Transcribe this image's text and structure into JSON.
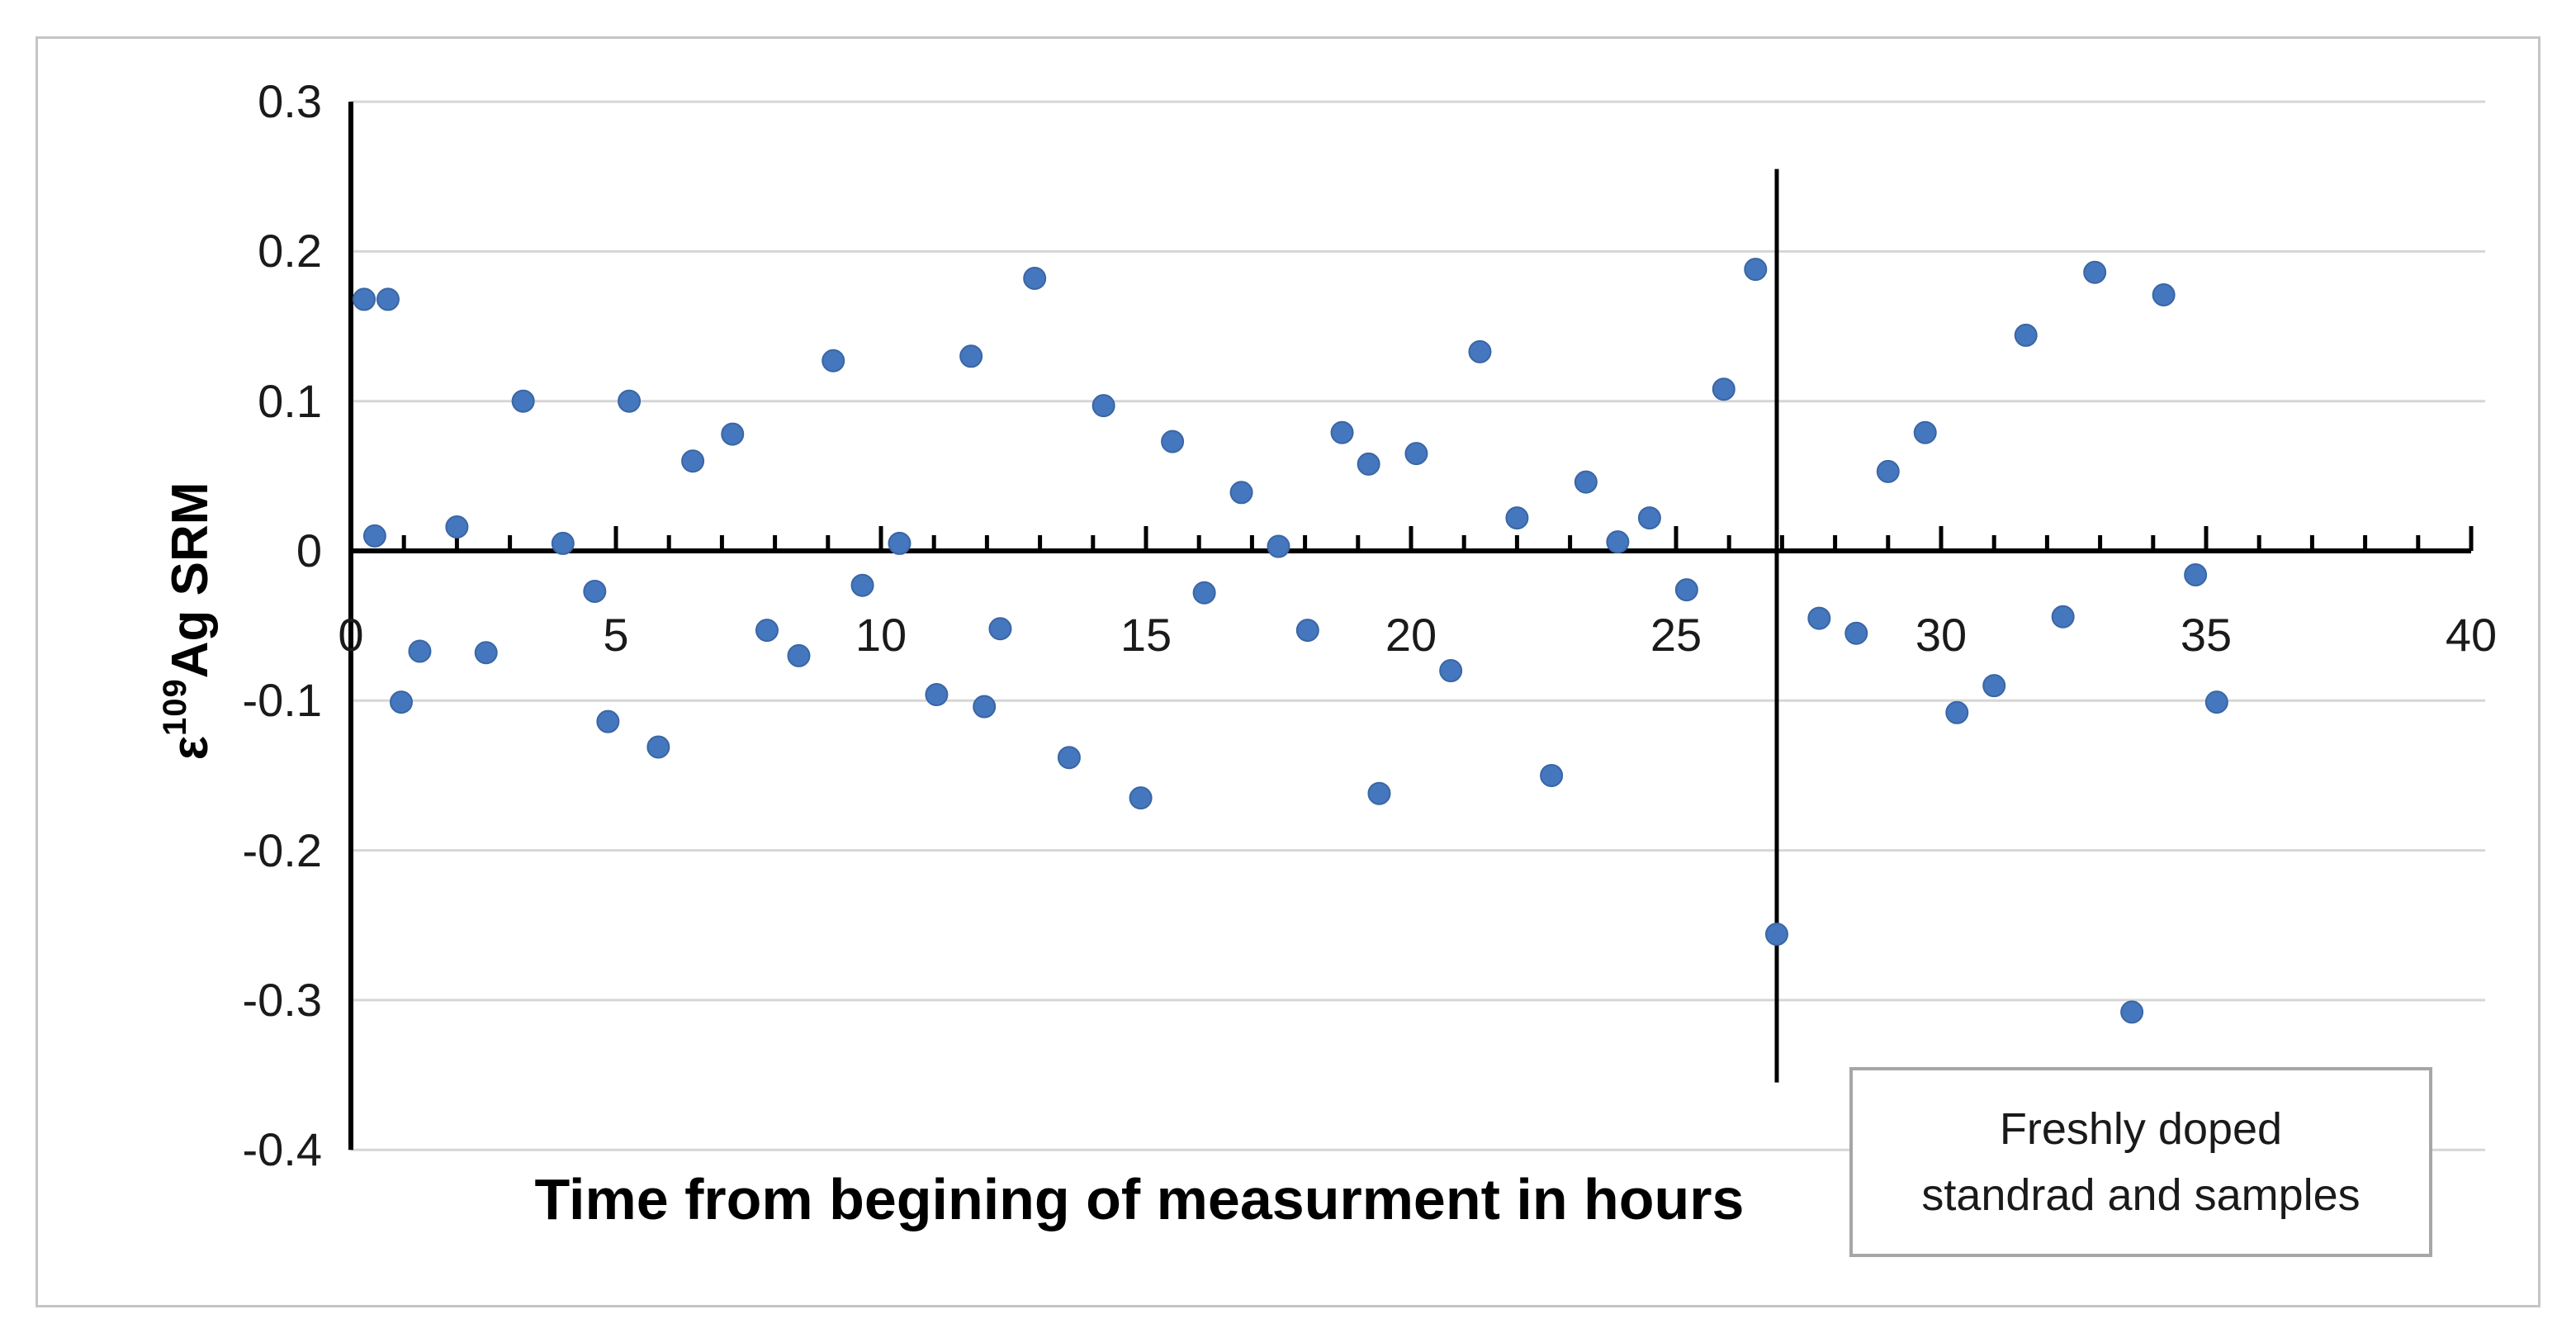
{
  "chart_data": {
    "type": "scatter",
    "title": "",
    "xlabel": "Time from begining of measurment in hours",
    "ylabel": "ε109Ag SRM",
    "ylabel_parts": {
      "epsilon": "ε",
      "superscript": "109",
      "rest": "Ag SRM"
    },
    "xlim": [
      0,
      40
    ],
    "ylim": [
      -0.4,
      0.3
    ],
    "x_ticks": [
      0,
      5,
      10,
      15,
      20,
      25,
      30,
      35,
      40
    ],
    "y_ticks": [
      0.3,
      0.2,
      0.1,
      0,
      -0.1,
      -0.2,
      -0.3,
      -0.4
    ],
    "grid": true,
    "legend": "none",
    "series": [
      {
        "name": "ε109Ag SRM",
        "marker": "circle",
        "points": [
          [
            0.25,
            0.168
          ],
          [
            0.7,
            0.168
          ],
          [
            0.45,
            0.01
          ],
          [
            2.0,
            0.016
          ],
          [
            3.25,
            0.1
          ],
          [
            5.25,
            0.1
          ],
          [
            4.0,
            0.005
          ],
          [
            6.45,
            0.06
          ],
          [
            7.2,
            0.078
          ],
          [
            9.1,
            0.127
          ],
          [
            11.7,
            0.13
          ],
          [
            12.9,
            0.182
          ],
          [
            10.35,
            0.005
          ],
          [
            4.6,
            -0.027
          ],
          [
            9.65,
            -0.023
          ],
          [
            1.3,
            -0.067
          ],
          [
            2.55,
            -0.068
          ],
          [
            0.95,
            -0.101
          ],
          [
            4.85,
            -0.114
          ],
          [
            5.8,
            -0.131
          ],
          [
            7.85,
            -0.053
          ],
          [
            8.45,
            -0.07
          ],
          [
            11.05,
            -0.096
          ],
          [
            11.95,
            -0.104
          ],
          [
            12.25,
            -0.052
          ],
          [
            13.55,
            -0.138
          ],
          [
            14.2,
            0.097
          ],
          [
            15.5,
            0.073
          ],
          [
            16.8,
            0.039
          ],
          [
            17.5,
            0.003
          ],
          [
            18.7,
            0.079
          ],
          [
            19.2,
            0.058
          ],
          [
            20.1,
            0.065
          ],
          [
            21.3,
            0.133
          ],
          [
            22.0,
            0.022
          ],
          [
            23.3,
            0.046
          ],
          [
            23.9,
            0.006
          ],
          [
            24.5,
            0.022
          ],
          [
            25.9,
            0.108
          ],
          [
            26.5,
            0.188
          ],
          [
            25.2,
            -0.026
          ],
          [
            16.1,
            -0.028
          ],
          [
            18.05,
            -0.053
          ],
          [
            20.75,
            -0.08
          ],
          [
            14.9,
            -0.165
          ],
          [
            19.4,
            -0.162
          ],
          [
            22.65,
            -0.15
          ],
          [
            26.9,
            -0.256
          ],
          [
            29.0,
            0.053
          ],
          [
            29.7,
            0.079
          ],
          [
            31.6,
            0.144
          ],
          [
            32.9,
            0.186
          ],
          [
            34.2,
            0.171
          ],
          [
            27.7,
            -0.045
          ],
          [
            28.4,
            -0.055
          ],
          [
            32.3,
            -0.044
          ],
          [
            34.8,
            -0.016
          ],
          [
            31.0,
            -0.09
          ],
          [
            30.3,
            -0.108
          ],
          [
            35.2,
            -0.101
          ],
          [
            33.6,
            -0.308
          ]
        ]
      }
    ],
    "vertical_line": {
      "x": 26.9,
      "y_from": -0.355,
      "y_to": 0.255
    },
    "annotation": {
      "line1": "Freshly doped",
      "line2": "standrad and samples"
    }
  },
  "colors": {
    "marker_fill": "#4577BE",
    "marker_edge": "#3A66A4",
    "gridline": "#D6D6D6",
    "axis": "#000000",
    "vertical_line": "#000000",
    "annotation_border": "#A6A6A6",
    "chart_border": "#C5C5C5",
    "text": "#1A1A1A"
  }
}
